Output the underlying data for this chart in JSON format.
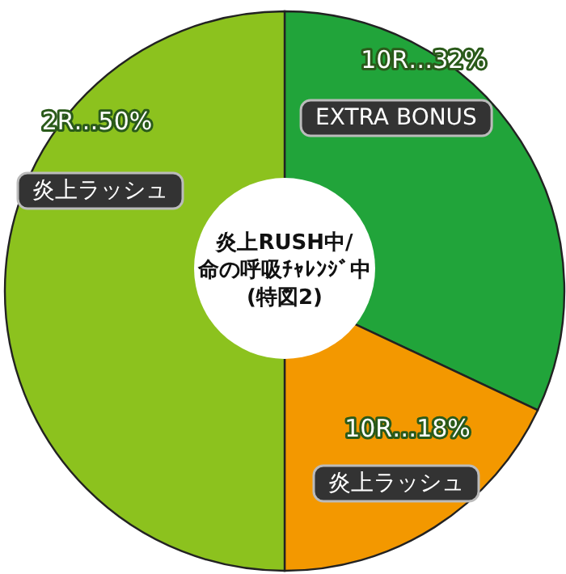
{
  "chart_data": {
    "type": "pie",
    "title": "炎上RUSH中/\n命の呼吸ﾁｬﾚﾝｼﾞ中\n(特図2)",
    "categories": [
      "EXTRA BONUS",
      "炎上ラッシュ",
      "炎上ラッシュ"
    ],
    "values": [
      32,
      18,
      50
    ],
    "colors": [
      "#21a43a",
      "#f39800",
      "#8cc21e"
    ],
    "value_labels": [
      "10R…32%",
      "10R…18%",
      "2R…50%"
    ]
  }
}
